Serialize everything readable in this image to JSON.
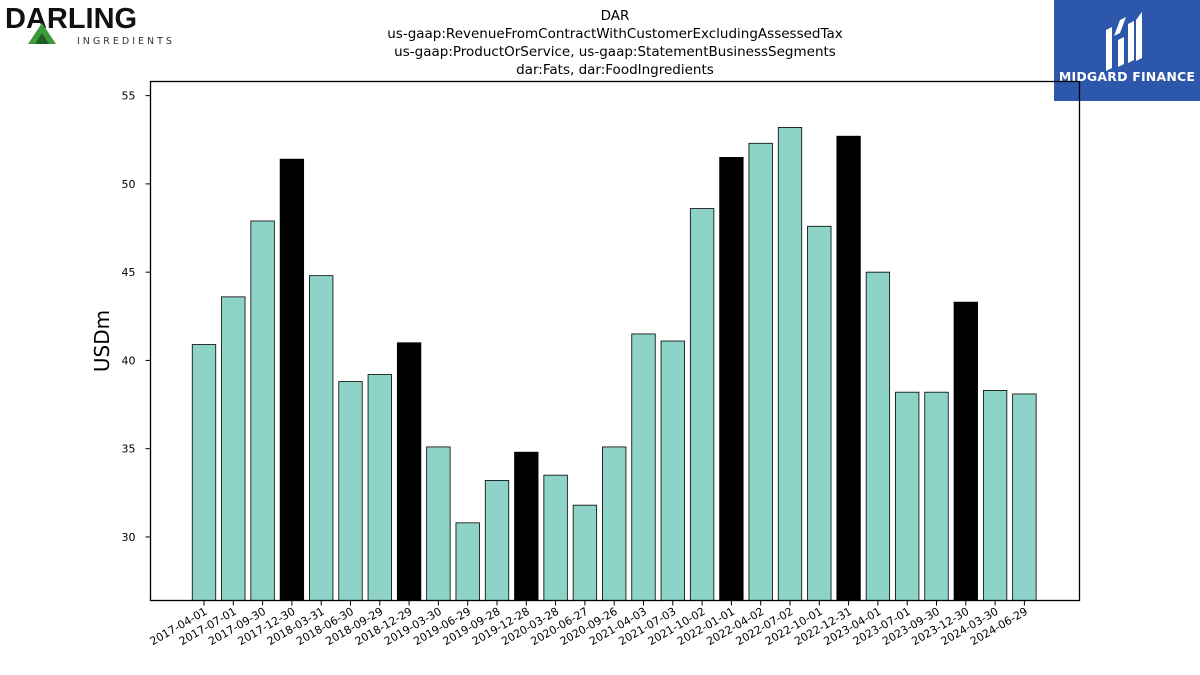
{
  "header": {
    "title_lines": [
      "DAR",
      "us-gaap:RevenueFromContractWithCustomerExcludingAssessedTax",
      "us-gaap:ProductOrService, us-gaap:StatementBusinessSegments",
      "dar:Fats, dar:FoodIngredients"
    ]
  },
  "logos": {
    "left": {
      "word": "DARLING",
      "sub": "INGREDIENTS"
    },
    "right": {
      "name": "MIDGARD FINANCE",
      "background": "#2c57ab"
    }
  },
  "chart_data": {
    "type": "bar",
    "title": "DAR",
    "ylabel": "USDm",
    "xlabel": "",
    "ylim": [
      26.4,
      55.8
    ],
    "yticks": [
      30,
      35,
      40,
      45,
      50,
      55
    ],
    "grid": false,
    "colors": {
      "regular": "#8dd3c7",
      "highlight": "#000000",
      "edge": "#000000"
    },
    "categories": [
      "2017-04-01",
      "2017-07-01",
      "2017-09-30",
      "2017-12-30",
      "2018-03-31",
      "2018-06-30",
      "2018-09-29",
      "2018-12-29",
      "2019-03-30",
      "2019-06-29",
      "2019-09-28",
      "2019-12-28",
      "2020-03-28",
      "2020-06-27",
      "2020-09-26",
      "2021-04-03",
      "2021-07-03",
      "2021-10-02",
      "2022-01-01",
      "2022-04-02",
      "2022-07-02",
      "2022-10-01",
      "2022-12-31",
      "2023-04-01",
      "2023-07-01",
      "2023-09-30",
      "2023-12-30",
      "2024-03-30",
      "2024-06-29"
    ],
    "values": [
      40.9,
      43.6,
      47.9,
      51.4,
      44.8,
      38.8,
      39.2,
      41.0,
      35.1,
      30.8,
      33.2,
      34.8,
      33.5,
      31.8,
      35.1,
      41.5,
      41.1,
      48.6,
      51.5,
      52.3,
      53.2,
      47.6,
      52.7,
      45.0,
      38.2,
      38.2,
      43.3,
      38.3,
      38.1
    ],
    "highlighted": [
      false,
      false,
      false,
      true,
      false,
      false,
      false,
      true,
      false,
      false,
      false,
      true,
      false,
      false,
      false,
      false,
      false,
      false,
      true,
      false,
      false,
      false,
      true,
      false,
      false,
      false,
      true,
      false,
      false
    ]
  }
}
